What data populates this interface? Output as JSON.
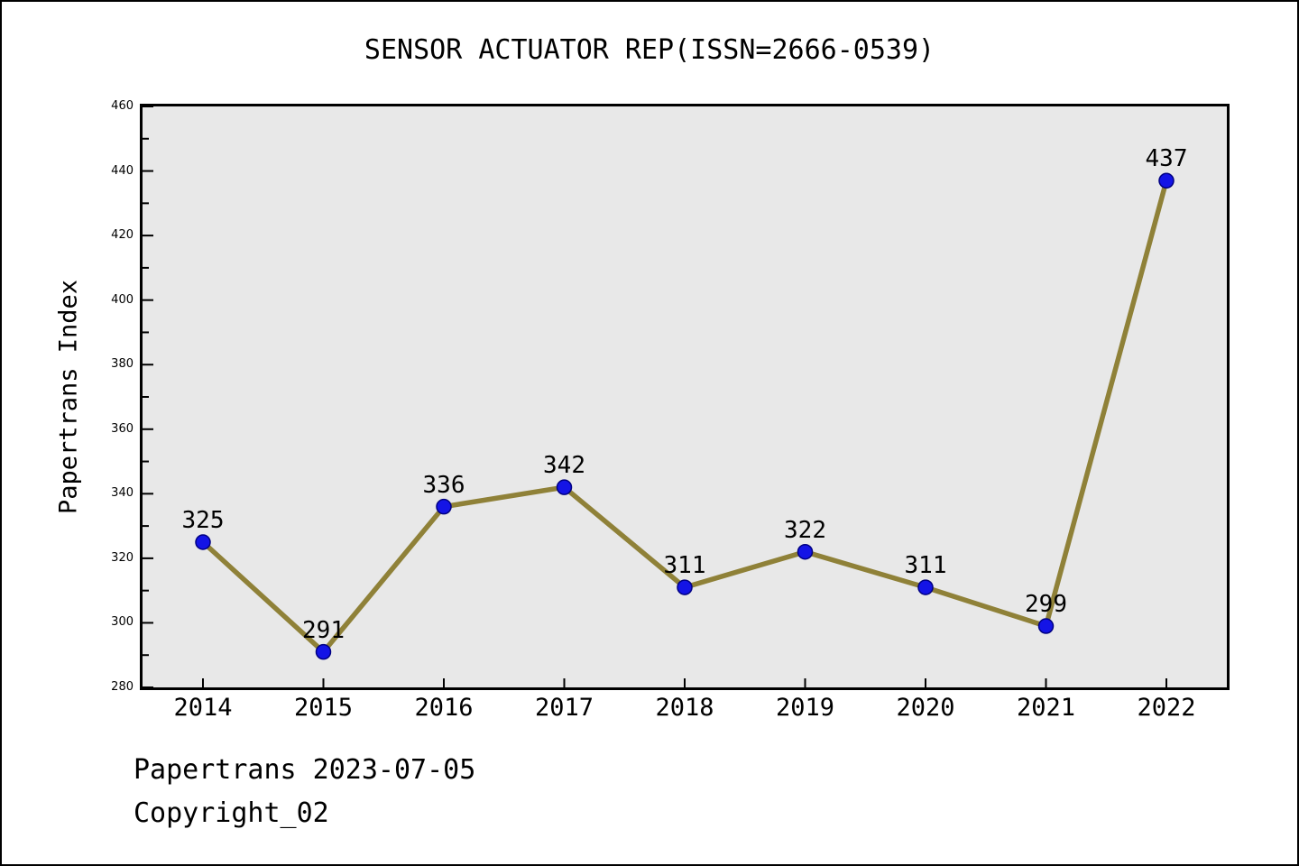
{
  "title": "SENSOR ACTUATOR REP(ISSN=2666-0539)",
  "y_axis_label": "Papertrans Index",
  "footer": {
    "date_line": "Papertrans 2023-07-05",
    "copyright_line": "Copyright_02"
  },
  "chart_data": {
    "type": "line",
    "title": "SENSOR ACTUATOR REP(ISSN=2666-0539)",
    "xlabel": "",
    "ylabel": "Papertrans Index",
    "x": [
      2014,
      2015,
      2016,
      2017,
      2018,
      2019,
      2020,
      2021,
      2022
    ],
    "series": [
      {
        "name": "Papertrans Index",
        "values": [
          325,
          291,
          336,
          342,
          311,
          322,
          311,
          299,
          437
        ]
      }
    ],
    "point_labels": [
      "325",
      "291",
      "336",
      "342",
      "311",
      "322",
      "311",
      "299",
      "437"
    ],
    "ylim": [
      280,
      460
    ],
    "y_major_ticks": [
      280,
      300,
      320,
      340,
      360,
      380,
      400,
      420,
      440,
      460
    ],
    "y_minor_step": 10,
    "grid": false,
    "legend": false,
    "colors": {
      "line": "#8F8138",
      "marker_fill": "#1414E6",
      "marker_edge": "#000082",
      "plot_background": "#E8E8E8",
      "axis": "#000000",
      "text": "#000000"
    }
  }
}
